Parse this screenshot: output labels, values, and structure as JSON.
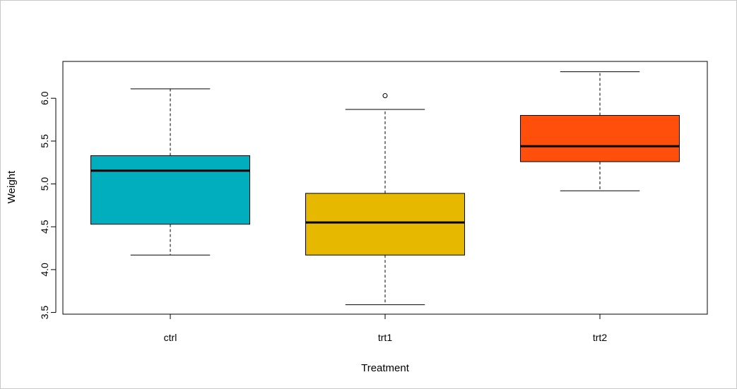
{
  "chart_data": {
    "type": "boxplot",
    "xlabel": "Treatment",
    "ylabel": "Weight",
    "ylim": [
      3.5,
      6.5
    ],
    "yticks": [
      "3.5",
      "4.0",
      "4.5",
      "5.0",
      "5.5",
      "6.0"
    ],
    "categories": [
      "ctrl",
      "trt1",
      "trt2"
    ],
    "boxes": [
      {
        "category": "ctrl",
        "whisker_low": 4.17,
        "q1": 4.53,
        "median": 5.155,
        "q3": 5.33,
        "whisker_high": 6.11,
        "outliers": [],
        "color": "#00AEBD"
      },
      {
        "category": "trt1",
        "whisker_low": 3.59,
        "q1": 4.17,
        "median": 4.55,
        "q3": 4.89,
        "whisker_high": 5.87,
        "outliers": [
          6.03
        ],
        "color": "#E6B800"
      },
      {
        "category": "trt2",
        "whisker_low": 4.92,
        "q1": 5.26,
        "median": 5.44,
        "q3": 5.8,
        "whisker_high": 6.31,
        "outliers": [],
        "color": "#FF4F0A"
      }
    ],
    "grid": false,
    "legend": "none"
  }
}
